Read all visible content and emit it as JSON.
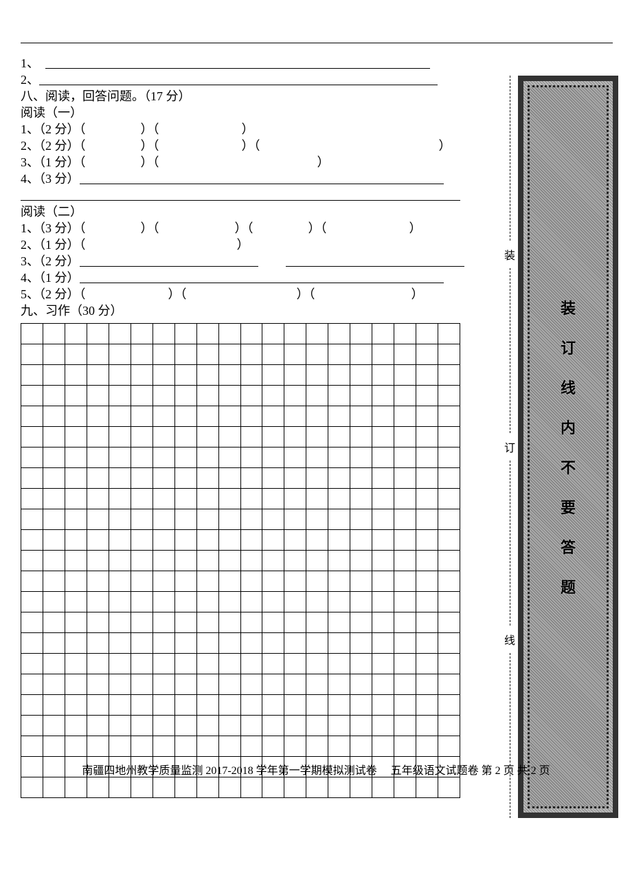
{
  "q1": {
    "index": "1、"
  },
  "q2": {
    "index": "2、"
  },
  "section8": {
    "title": "八、阅读，回答问题。（17 分）"
  },
  "reading1": {
    "title": "阅读（一）",
    "line1": {
      "prefix": "1、（2 分）（",
      "mid1": "）（",
      "end": "）",
      "gap1": 80,
      "gap2": 120
    },
    "line2": {
      "prefix": "2、（2 分）（",
      "mid1": "）（",
      "mid2": "）（",
      "end": "）",
      "gap1": 80,
      "gap2": 120,
      "gap3": 260
    },
    "line3": {
      "prefix": "3、（1 分）（",
      "mid1": "）（",
      "end": "）",
      "gap1": 80,
      "gap2": 230
    },
    "line4": {
      "prefix": "4、（3 分）",
      "u_width": 530
    },
    "line4b": {
      "u_width": 640
    }
  },
  "reading2": {
    "title": "阅读（二）",
    "line1": {
      "prefix": "1、（3 分）（",
      "m": "）（",
      "end": "）",
      "g1": 80,
      "g2": 110,
      "g3": 80,
      "g4": 120
    },
    "line2": {
      "prefix": "2、（1 分）（",
      "end": "）",
      "g1": 220
    },
    "line3": {
      "prefix": "3、（2 分）",
      "u1": 260,
      "gap": 40,
      "u2": 260
    },
    "line4": {
      "prefix": "4、（1 分）",
      "u1": 530
    },
    "line5": {
      "prefix": "5、（2 分）（",
      "m": "）（",
      "end": "）",
      "g1": 120,
      "g2": 160,
      "g3": 140
    }
  },
  "section9": {
    "title": "九、习作（30 分）"
  },
  "grid": {
    "rows": 23,
    "cols": 20
  },
  "binding": {
    "dashed_labels": [
      "装",
      "订",
      "线"
    ],
    "box_chars": [
      "装",
      "订",
      "线",
      "内",
      "不",
      "要",
      "答",
      "题"
    ]
  },
  "footer": {
    "text": "南疆四地州教学质量监测 2017-2018 学年第一学期模拟测试卷　 五年级语文试题卷  第  2  页  共 2 页"
  },
  "colors": {
    "text": "#000000",
    "bg": "#ffffff",
    "gridline": "#000000"
  }
}
